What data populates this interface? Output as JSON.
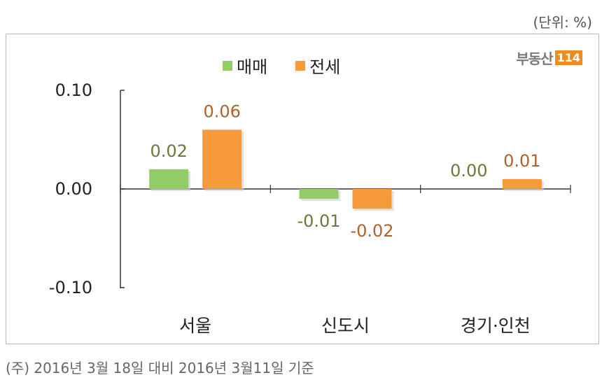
{
  "unit_label": "(단위: %)",
  "logo": {
    "text": "부동산",
    "num": "114"
  },
  "footnote": "(주) 2016년 3월 18일 대비 2016년 3월11일 기준",
  "colors": {
    "sale": "#92cd6a",
    "lease": "#f79a3a",
    "label_sale": "#6b7a3a",
    "label_lease": "#b0622a"
  },
  "chart_data": {
    "type": "bar",
    "categories": [
      "서울",
      "신도시",
      "경기·인천"
    ],
    "series": [
      {
        "name": "매매",
        "values": [
          0.02,
          -0.01,
          0.0
        ],
        "labels": [
          "0.02",
          "-0.01",
          "0.00"
        ]
      },
      {
        "name": "전세",
        "values": [
          0.06,
          -0.02,
          0.01
        ],
        "labels": [
          "0.06",
          "-0.02",
          "0.01"
        ]
      }
    ],
    "ylim": [
      -0.1,
      0.1
    ],
    "yticks": [
      "0.10",
      "0.00",
      "-0.10"
    ],
    "grid": false,
    "legend": "top"
  }
}
